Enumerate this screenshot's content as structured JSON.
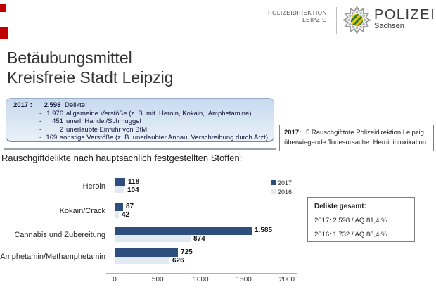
{
  "header": {
    "department_line1": "POLIZEIDIREKTION",
    "department_line2": "LEIPZIG",
    "brand_name": "POLIZEI",
    "brand_region": "Sachsen",
    "logo_icon": "saxony-police-star-icon"
  },
  "title": {
    "line1": "Betäubungsmittel",
    "line2": "Kreisfreie Stadt Leipzig"
  },
  "summary_box": {
    "year": "2017 :",
    "total": "2.598",
    "total_label": "Delikte:",
    "items": [
      {
        "dash": "-",
        "value": "1.976",
        "text": "allgemeine Verstöße (z. B. mit. Heroin, Kokain,  Amphetamine)"
      },
      {
        "dash": "-",
        "value": "451",
        "text": "unerl. Handel/Schmuggel"
      },
      {
        "dash": "-",
        "value": "2",
        "text": "unerlaubte Einfuhr von BtM"
      },
      {
        "dash": "-",
        "value": "169",
        "text": "sonstige Verstöße (z. B. unerlaubter Anbau, Verschreibung durch Arzt)"
      }
    ]
  },
  "deaths_box": {
    "year": "2017:",
    "line1": "5 Rauschgifttote Polizeidirektion Leipzig",
    "line2": "überwiegende Todesursache: Heroinintoxikation"
  },
  "section_heading": "Rauschgiftdelikte nach hauptsächlich festgestellten Stoffen:",
  "chart_data": {
    "type": "bar",
    "orientation": "horizontal",
    "title": "Rauschgiftdelikte nach hauptsächlich festgestellten Stoffen",
    "categories": [
      "Heroin",
      "Kokain/Crack",
      "Cannabis und Zubereitung",
      "Amphetamin/Methamphetamin"
    ],
    "series": [
      {
        "name": "2017",
        "color": "#2E4F7E",
        "values": [
          118,
          87,
          1585,
          725
        ],
        "value_labels": [
          "118",
          "87",
          "1.585",
          "725"
        ]
      },
      {
        "name": "2016",
        "color": "#E3E9F1",
        "values": [
          104,
          42,
          874,
          626
        ],
        "value_labels": [
          "104",
          "42",
          "874",
          "626"
        ]
      }
    ],
    "xlim": [
      0,
      2000
    ],
    "x_ticks": [
      0,
      500,
      1000,
      1500,
      2000
    ],
    "grid": false,
    "legend_position": "top-right"
  },
  "totals_box": {
    "heading": "Delikte gesamt:",
    "rows": [
      "2017: 2.598 / AQ 81,4 %",
      "2016: 1.732 / AQ 88,4 %"
    ]
  },
  "colors": {
    "bar_2017": "#2E4F7E",
    "bar_2016": "#E3E9F1",
    "edge_mark": "#C00000",
    "summary_box_top": "#C7DAEE",
    "summary_box_bottom": "#EAF1F9",
    "axis": "#8C8C8C"
  }
}
